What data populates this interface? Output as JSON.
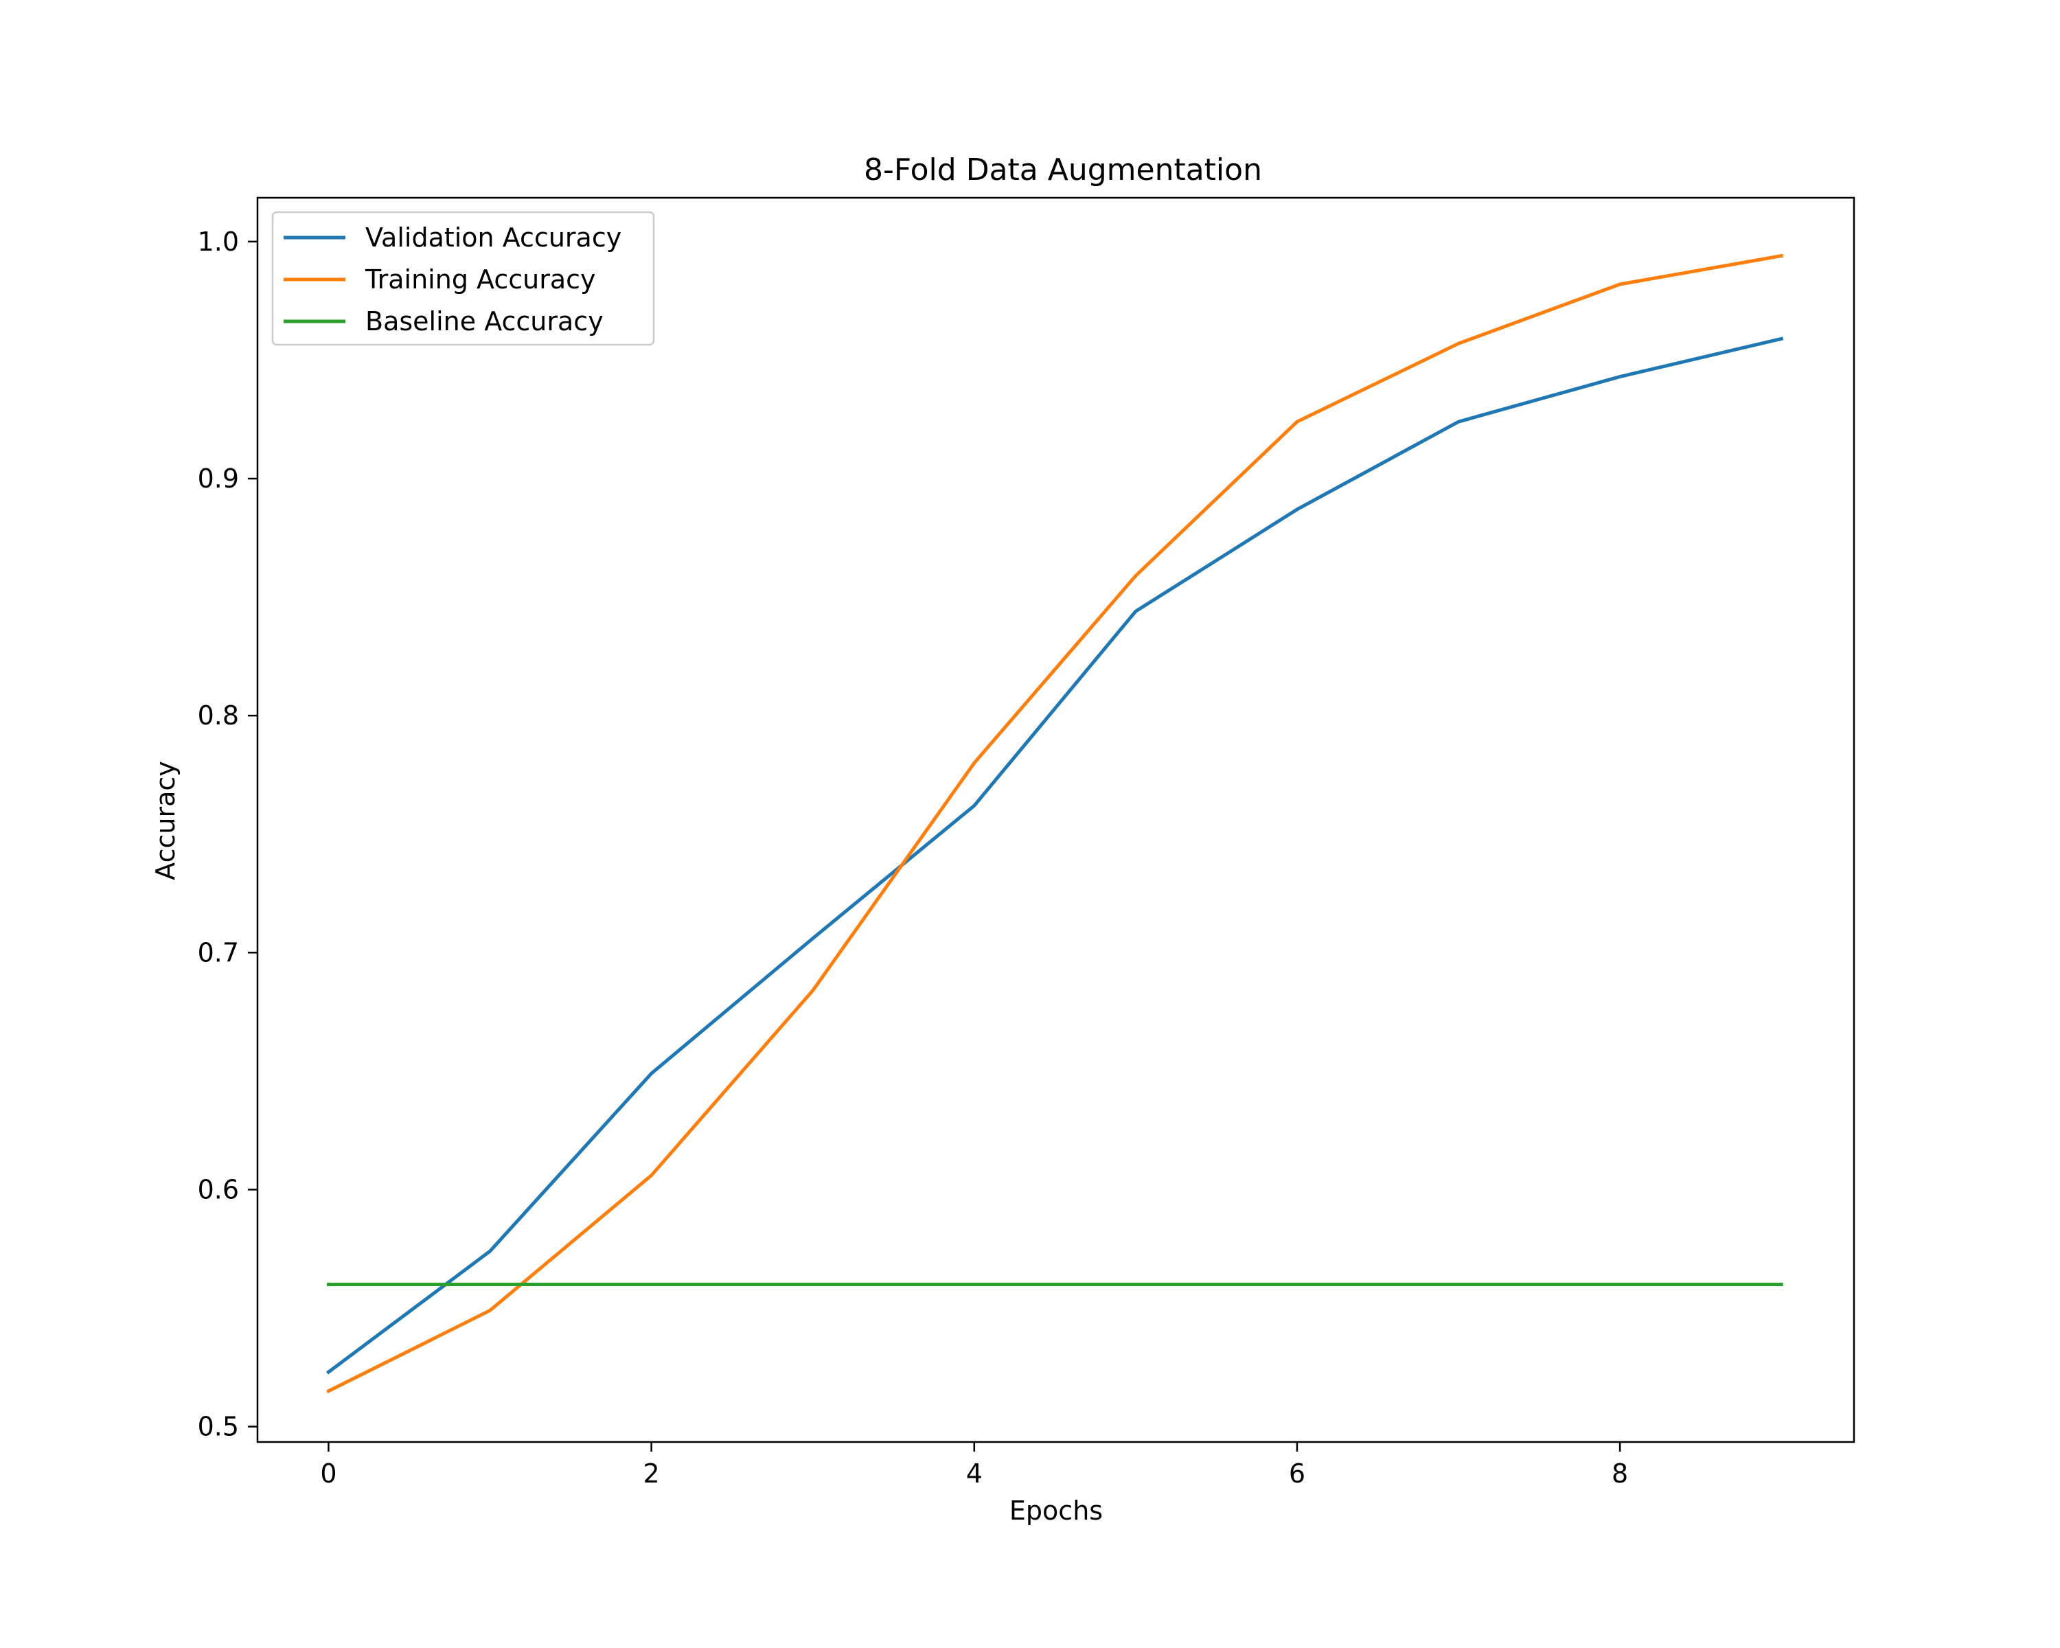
{
  "chart_data": {
    "type": "line",
    "title": "8-Fold Data Augmentation",
    "xlabel": "Epochs",
    "ylabel": "Accuracy",
    "xlim": [
      -0.44,
      9.45
    ],
    "ylim": [
      0.4935,
      1.0185
    ],
    "xticks": [
      0,
      2,
      4,
      6,
      8
    ],
    "yticks": [
      0.5,
      0.6,
      0.7,
      0.8,
      0.9,
      1.0
    ],
    "ytick_labels": [
      "0.5",
      "0.6",
      "0.7",
      "0.8",
      "0.9",
      "1.0"
    ],
    "grid": false,
    "legend_position": "top-left",
    "x": [
      0,
      1,
      2,
      3,
      4,
      5,
      6,
      7,
      8,
      9
    ],
    "series": [
      {
        "name": "Validation Accuracy",
        "color": "#1f77b4",
        "values": [
          0.523,
          0.574,
          0.649,
          0.706,
          0.762,
          0.844,
          0.887,
          0.924,
          0.943,
          0.959
        ]
      },
      {
        "name": "Training Accuracy",
        "color": "#ff7f0e",
        "values": [
          0.515,
          0.549,
          0.606,
          0.684,
          0.78,
          0.859,
          0.924,
          0.957,
          0.982,
          0.994
        ]
      },
      {
        "name": "Baseline Accuracy",
        "color": "#2ca02c",
        "values": [
          0.56,
          0.56,
          0.56,
          0.56,
          0.56,
          0.56,
          0.56,
          0.56,
          0.56,
          0.56
        ]
      }
    ]
  }
}
